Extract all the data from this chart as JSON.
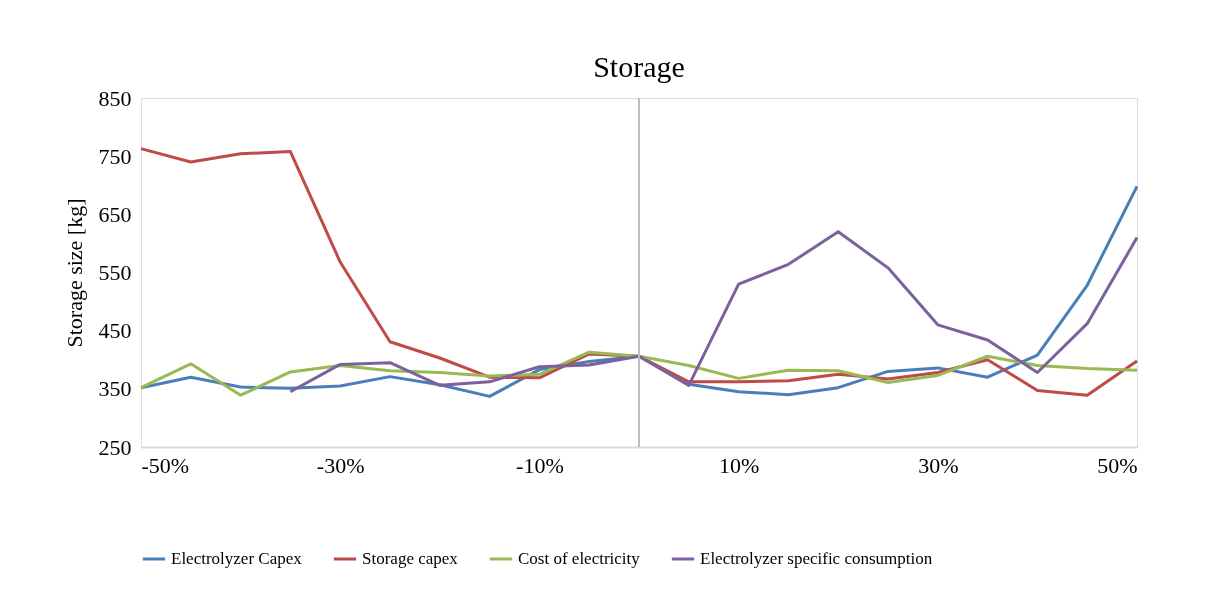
{
  "chart_data": {
    "type": "line",
    "title": "Storage",
    "ylabel": "Storage size [kg]",
    "x": [
      -50,
      -45,
      -40,
      -35,
      -30,
      -25,
      -20,
      -15,
      -10,
      -5,
      0,
      5,
      10,
      15,
      20,
      25,
      30,
      35,
      40,
      45,
      50
    ],
    "xlim": [
      -50,
      50
    ],
    "xticks": [
      {
        "value": -50,
        "label": "-50%"
      },
      {
        "value": -30,
        "label": "-30%"
      },
      {
        "value": -10,
        "label": "-10%"
      },
      {
        "value": 10,
        "label": "10%"
      },
      {
        "value": 30,
        "label": "30%"
      },
      {
        "value": 50,
        "label": "50%"
      }
    ],
    "ylim": [
      250,
      850
    ],
    "yticks": [
      250,
      350,
      450,
      550,
      650,
      750,
      850
    ],
    "grid": false,
    "legend": "bottom",
    "marker": "none",
    "line_style": "solid",
    "ref_lines": [
      {
        "axis": "x",
        "value": 0,
        "label": null,
        "color": "#bfbfbf"
      }
    ],
    "series": [
      {
        "name": "Electrolyzer Capex",
        "color": "#4a7ebb",
        "values": [
          352,
          370,
          353,
          351,
          355,
          371,
          357,
          337,
          383,
          397,
          406,
          358,
          345,
          340,
          352,
          380,
          386,
          370,
          408,
          528,
          698
        ]
      },
      {
        "name": "Storage capex",
        "color": "#be4b48",
        "values": [
          763,
          740,
          754,
          758,
          568,
          431,
          403,
          370,
          369,
          410,
          406,
          362,
          362,
          364,
          375,
          367,
          378,
          400,
          347,
          339,
          398
        ]
      },
      {
        "name": "Cost of electricity",
        "color": "#98b954",
        "values": [
          352,
          393,
          339,
          379,
          390,
          381,
          378,
          372,
          375,
          413,
          406,
          390,
          368,
          382,
          381,
          361,
          373,
          406,
          390,
          385,
          382
        ]
      },
      {
        "name": "Electrolyzer specific consumption",
        "color": "#7d60a0",
        "values": [
          null,
          null,
          null,
          345,
          392,
          395,
          356,
          362,
          388,
          391,
          406,
          356,
          530,
          564,
          620,
          558,
          460,
          434,
          378,
          462,
          610
        ]
      }
    ]
  }
}
